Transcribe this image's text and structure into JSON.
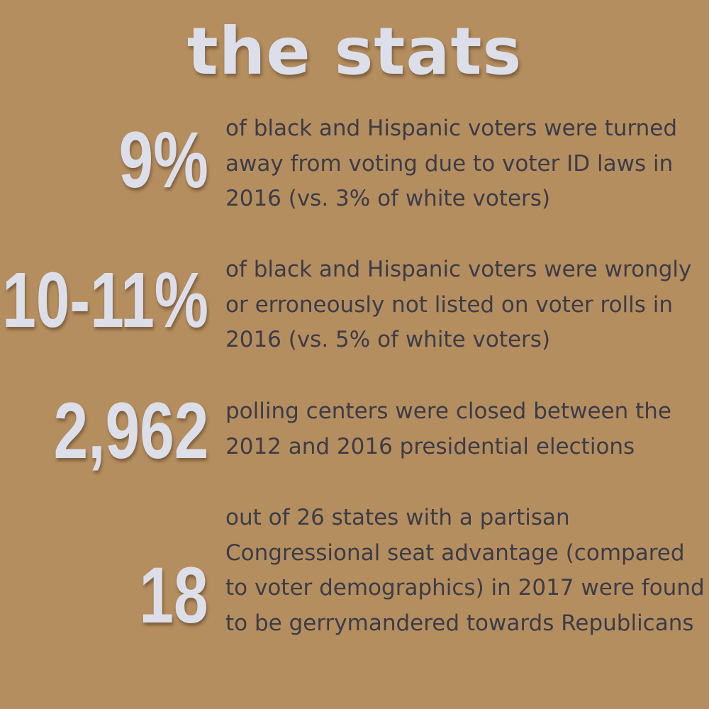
{
  "title": "the stats",
  "stats": [
    {
      "number": "9%",
      "text": "of black and Hispanic voters were turned away from voting due to voter ID laws in 2016 (vs. 3% of white voters)"
    },
    {
      "number": "10-11%",
      "text": "of black and Hispanic voters were wrongly or erroneously not listed on voter rolls in 2016 (vs. 5% of white voters)"
    },
    {
      "number": "2,962",
      "text": "polling centers were closed between the 2012 and 2016 presidential elections"
    },
    {
      "number": "18",
      "text": "out of 26 states with a partisan Congressional seat advantage (compared to voter demographics) in 2017 were found to be gerrymandered towards Republicans"
    }
  ],
  "colors": {
    "background": "#b58e5f",
    "highlight": "#dcdfea",
    "body_text": "#3b3c48"
  }
}
